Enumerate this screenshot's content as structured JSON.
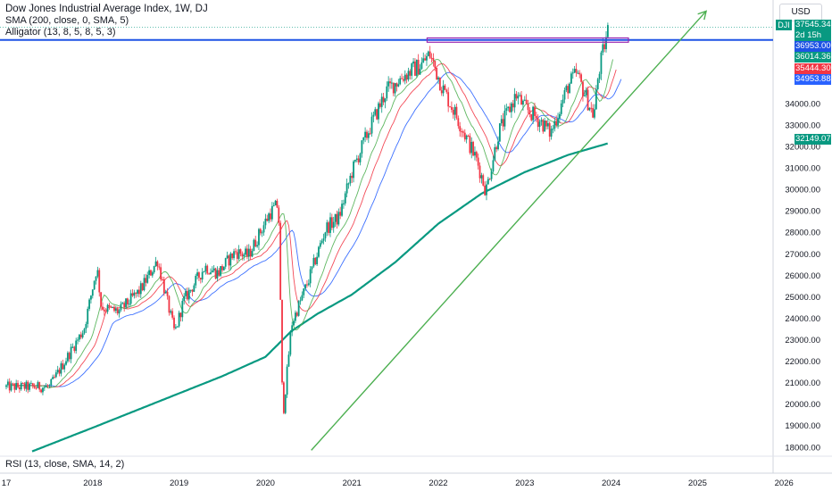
{
  "legend": {
    "title": "Dow Jones Industrial Average Index, 1W, DJ",
    "sma": "SMA (200, close, 0, SMA, 5)",
    "alligator": "Alligator (13, 8, 5, 8, 5, 3)"
  },
  "rsi_label": "RSI (13, close, SMA, 14, 2)",
  "currency_button": "USD",
  "symbol_tag": "DJI",
  "countdown": "2d 15h",
  "colors": {
    "up": "#089981",
    "down": "#f23645",
    "sma": "#089981",
    "trend": "#4caf50",
    "jaw": "#2962ff",
    "teeth": "#f23645",
    "lips": "#4caf50",
    "level": "#1e53e5",
    "zone": "#9c27b0"
  },
  "price_labels": [
    {
      "text": "37545.34",
      "color": "#089981"
    },
    {
      "text": "36953.00",
      "color": "#1e53e5"
    },
    {
      "text": "36014.36",
      "color": "#089981"
    },
    {
      "text": "35444.30",
      "color": "#f23645"
    },
    {
      "text": "34953.88",
      "color": "#2962ff"
    },
    {
      "text": "32149.07",
      "color": "#089981"
    }
  ],
  "chart_data": {
    "type": "line",
    "title": "Dow Jones Industrial Average Index, 1W, DJ",
    "x_ticks": [
      "17",
      "2018",
      "2019",
      "2020",
      "2021",
      "2022",
      "2023",
      "2024",
      "2025",
      "2026"
    ],
    "y_ticks": [
      18000,
      19000,
      20000,
      21000,
      22000,
      23000,
      24000,
      25000,
      26000,
      27000,
      28000,
      29000,
      30000,
      31000,
      32000,
      33000,
      34000
    ],
    "ylim": [
      17700,
      38400
    ],
    "price_anchors": {
      "x": [
        2017.5,
        2017.9,
        2018.05,
        2018.1,
        2018.3,
        2018.55,
        2018.75,
        2018.95,
        2019.05,
        2019.3,
        2019.45,
        2019.65,
        2019.8,
        2020.05,
        2020.15,
        2020.2,
        2020.3,
        2020.5,
        2020.7,
        2020.85,
        2021.0,
        2021.2,
        2021.4,
        2021.6,
        2021.8,
        2021.9,
        2022.05,
        2022.2,
        2022.45,
        2022.55,
        2022.7,
        2022.9,
        2023.0,
        2023.2,
        2023.3,
        2023.5,
        2023.6,
        2023.75,
        2023.8,
        2023.85,
        2023.9,
        2023.97
      ],
      "y": [
        20800,
        23500,
        26400,
        24500,
        24300,
        25300,
        26700,
        23300,
        24800,
        26400,
        26100,
        27100,
        26900,
        28900,
        29300,
        19300,
        23700,
        25800,
        28200,
        28700,
        30800,
        32800,
        34600,
        35300,
        35800,
        36300,
        34700,
        33500,
        31300,
        29900,
        32700,
        34400,
        33800,
        33100,
        32600,
        34800,
        35400,
        33900,
        33400,
        35300,
        36300,
        37545.34
      ]
    },
    "sma200": {
      "name": "SMA (200, close, 0, SMA, 5)",
      "x": [
        2017.3,
        2018.0,
        2018.5,
        2019.0,
        2019.5,
        2020.0,
        2020.3,
        2020.6,
        2021.0,
        2021.5,
        2022.0,
        2022.5,
        2022.8,
        2023.0,
        2023.5,
        2023.97
      ],
      "y": [
        17800,
        18900,
        19700,
        20500,
        21300,
        22200,
        23400,
        24200,
        25100,
        26600,
        28400,
        29800,
        30400,
        30800,
        31600,
        32149.07
      ]
    },
    "trendline": {
      "x": [
        2020.53,
        2025.1
      ],
      "y": [
        17850,
        38300
      ]
    },
    "horizontal_level": 36953.0,
    "resistance_zone": {
      "x": [
        2021.87,
        2024.2
      ],
      "y": [
        36850,
        37050
      ]
    }
  }
}
